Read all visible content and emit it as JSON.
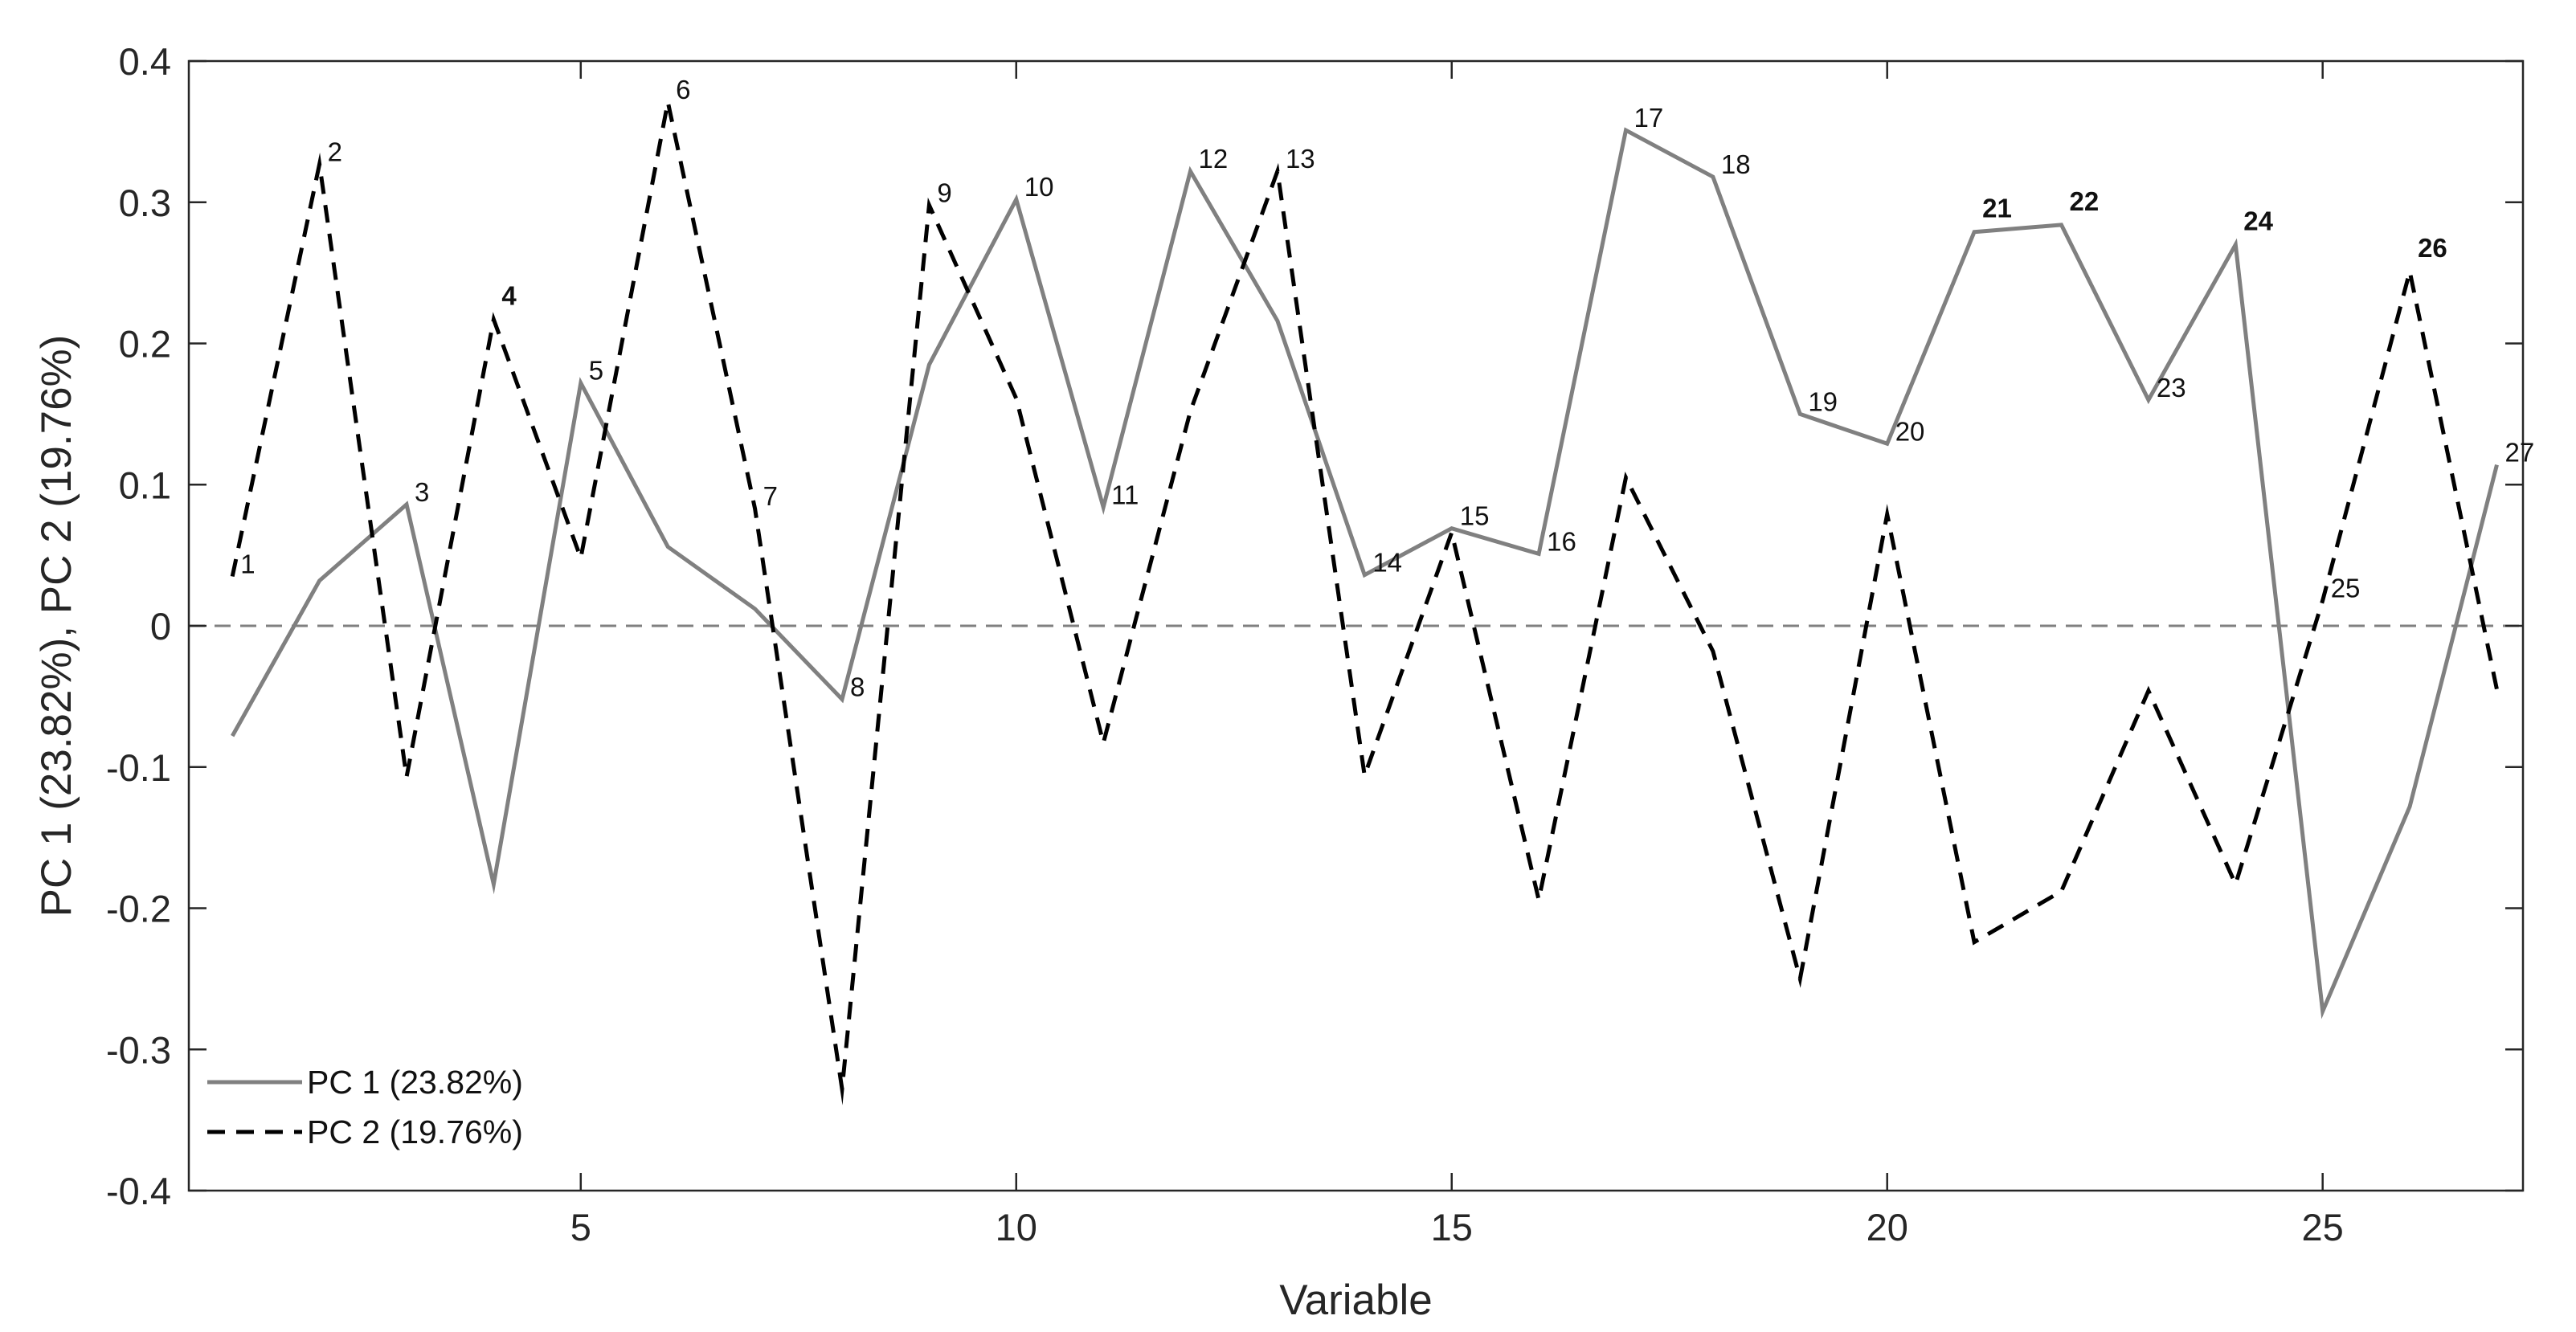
{
  "chart_data": {
    "type": "line",
    "title": "",
    "xlabel": "Variable",
    "ylabel": "PC 1 (23.82%), PC 2 (19.76%)",
    "xlim": [
      0.5,
      27.3
    ],
    "ylim": [
      -0.4,
      0.4
    ],
    "xticks": [
      5,
      10,
      15,
      20,
      25
    ],
    "yticks": [
      -0.4,
      -0.3,
      -0.2,
      -0.1,
      0,
      0.1,
      0.2,
      0.3,
      0.4
    ],
    "ytick_labels": [
      "-0.4",
      "-0.3",
      "-0.2",
      "-0.1",
      "0",
      "0.1",
      "0.2",
      "0.3",
      "0.4"
    ],
    "x": [
      1,
      2,
      3,
      4,
      5,
      6,
      7,
      8,
      9,
      10,
      11,
      12,
      13,
      14,
      15,
      16,
      17,
      18,
      19,
      20,
      21,
      22,
      23,
      24,
      25,
      26,
      27
    ],
    "series": [
      {
        "name": "PC 1 (23.82%)",
        "style": "solid",
        "color": "#808080",
        "values": [
          -0.078,
          0.032,
          0.086,
          -0.183,
          0.172,
          0.056,
          0.012,
          -0.052,
          0.185,
          0.302,
          0.084,
          0.322,
          0.216,
          0.036,
          0.069,
          0.051,
          0.351,
          0.318,
          0.15,
          0.129,
          0.279,
          0.284,
          0.16,
          0.27,
          -0.273,
          -0.128,
          0.114
        ]
      },
      {
        "name": "PC 2 (19.76%)",
        "style": "dashed",
        "color": "#000000",
        "values": [
          0.035,
          0.327,
          -0.107,
          0.217,
          0.048,
          0.371,
          0.083,
          -0.328,
          0.298,
          0.161,
          -0.083,
          0.152,
          0.322,
          -0.106,
          0.066,
          -0.194,
          0.105,
          -0.018,
          -0.25,
          0.079,
          -0.224,
          -0.188,
          -0.046,
          -0.183,
          0.018,
          0.251,
          -0.045
        ]
      }
    ],
    "reference_line": {
      "y": 0,
      "style": "dashed",
      "color": "#808080"
    },
    "point_labels": [
      {
        "text": "1",
        "x": 1,
        "y": 0.035,
        "color": "#000000",
        "bold": false
      },
      {
        "text": "2",
        "x": 2,
        "y": 0.327,
        "color": "#000000",
        "bold": false
      },
      {
        "text": "3",
        "x": 3,
        "y": 0.086,
        "color": "#000000",
        "bold": false
      },
      {
        "text": "4",
        "x": 4,
        "y": 0.217,
        "color": "#e00000",
        "bold": true
      },
      {
        "text": "5",
        "x": 5,
        "y": 0.172,
        "color": "#000000",
        "bold": false
      },
      {
        "text": "6",
        "x": 6,
        "y": 0.371,
        "color": "#000000",
        "bold": false
      },
      {
        "text": "7",
        "x": 7,
        "y": 0.083,
        "color": "#000000",
        "bold": false
      },
      {
        "text": "8",
        "x": 8,
        "y": -0.052,
        "color": "#000000",
        "bold": false
      },
      {
        "text": "9",
        "x": 9,
        "y": 0.298,
        "color": "#000000",
        "bold": false
      },
      {
        "text": "10",
        "x": 10,
        "y": 0.302,
        "color": "#000000",
        "bold": false
      },
      {
        "text": "11",
        "x": 11,
        "y": 0.084,
        "color": "#000000",
        "bold": false
      },
      {
        "text": "12",
        "x": 12,
        "y": 0.322,
        "color": "#000000",
        "bold": false
      },
      {
        "text": "13",
        "x": 13,
        "y": 0.322,
        "color": "#000000",
        "bold": false
      },
      {
        "text": "14",
        "x": 14,
        "y": 0.036,
        "color": "#000000",
        "bold": false
      },
      {
        "text": "15",
        "x": 15,
        "y": 0.069,
        "color": "#000000",
        "bold": false
      },
      {
        "text": "16",
        "x": 16,
        "y": 0.051,
        "color": "#000000",
        "bold": false
      },
      {
        "text": "17",
        "x": 17,
        "y": 0.351,
        "color": "#000000",
        "bold": false
      },
      {
        "text": "18",
        "x": 18,
        "y": 0.318,
        "color": "#000000",
        "bold": false
      },
      {
        "text": "19",
        "x": 19,
        "y": 0.15,
        "color": "#000000",
        "bold": false
      },
      {
        "text": "20",
        "x": 20,
        "y": 0.129,
        "color": "#000000",
        "bold": false
      },
      {
        "text": "21",
        "x": 21,
        "y": 0.279,
        "color": "#6aa531",
        "bold": true
      },
      {
        "text": "22",
        "x": 22,
        "y": 0.284,
        "color": "#6aa531",
        "bold": true
      },
      {
        "text": "23",
        "x": 23,
        "y": 0.16,
        "color": "#000000",
        "bold": false
      },
      {
        "text": "24",
        "x": 24,
        "y": 0.27,
        "color": "#6aa531",
        "bold": true
      },
      {
        "text": "25",
        "x": 25,
        "y": 0.018,
        "color": "#000000",
        "bold": false
      },
      {
        "text": "26",
        "x": 26,
        "y": 0.251,
        "color": "#e00000",
        "bold": true
      },
      {
        "text": "27",
        "x": 27,
        "y": 0.114,
        "color": "#000000",
        "bold": false
      }
    ],
    "legend": {
      "position": "bottom-left",
      "entries": [
        "PC 1 (23.82%)",
        "PC 2 (19.76%)"
      ]
    },
    "grid": false
  }
}
